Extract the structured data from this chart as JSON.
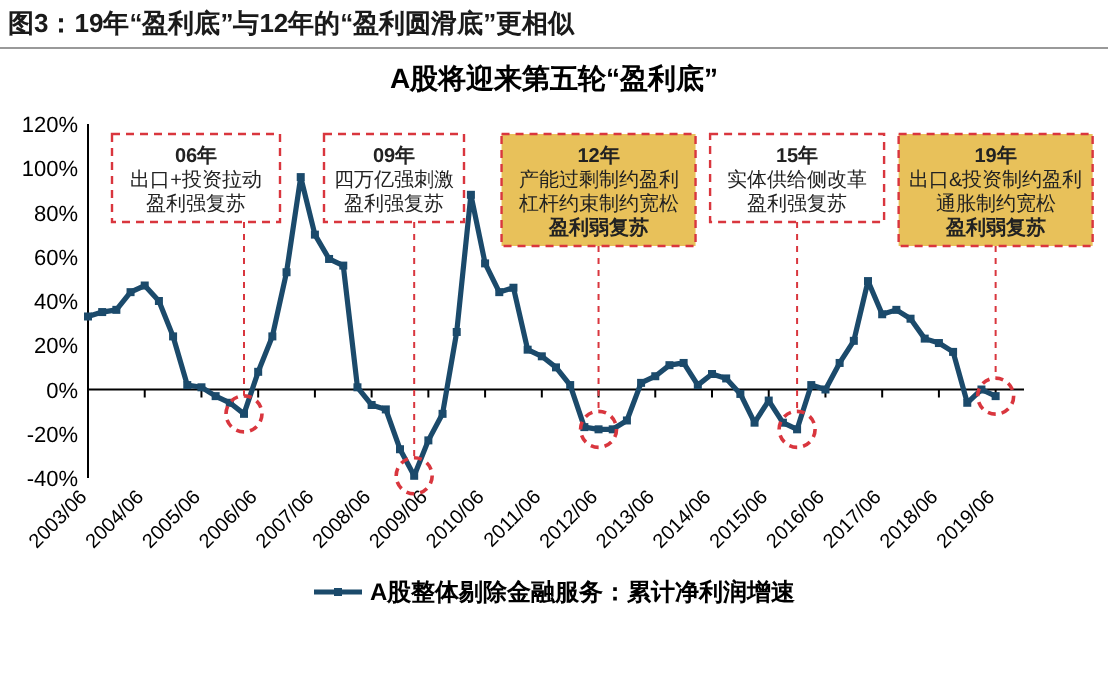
{
  "chart_data": {
    "type": "line",
    "title": "图3：19年“盈利底”与12年的“盈利圆滑底”更相似",
    "subtitle": "A股将迎来第五轮“盈利底”",
    "x": [
      "2003-06",
      "2003-09",
      "2003-12",
      "2004-03",
      "2004-06",
      "2004-09",
      "2004-12",
      "2005-03",
      "2005-06",
      "2005-09",
      "2005-12",
      "2006-03",
      "2006-06",
      "2006-09",
      "2006-12",
      "2007-03",
      "2007-06",
      "2007-09",
      "2007-12",
      "2008-03",
      "2008-06",
      "2008-09",
      "2008-12",
      "2009-03",
      "2009-06",
      "2009-09",
      "2009-12",
      "2010-03",
      "2010-06",
      "2010-09",
      "2010-12",
      "2011-03",
      "2011-06",
      "2011-09",
      "2011-12",
      "2012-03",
      "2012-06",
      "2012-09",
      "2012-12",
      "2013-03",
      "2013-06",
      "2013-09",
      "2013-12",
      "2014-03",
      "2014-06",
      "2014-09",
      "2014-12",
      "2015-03",
      "2015-06",
      "2015-09",
      "2015-12",
      "2016-03",
      "2016-06",
      "2016-09",
      "2016-12",
      "2017-03",
      "2017-06",
      "2017-09",
      "2017-12",
      "2018-03",
      "2018-06",
      "2018-09",
      "2018-12",
      "2019-03",
      "2019-06"
    ],
    "series": [
      {
        "name": "A股整体剔除金融服务：累计净利润增速",
        "color": "#1b4a6b",
        "values": [
          33,
          35,
          36,
          44,
          47,
          40,
          24,
          2,
          1,
          -3,
          -6,
          -11,
          8,
          24,
          53,
          96,
          70,
          59,
          56,
          1,
          -7,
          -9,
          -27,
          -39,
          -23,
          -11,
          26,
          88,
          57,
          44,
          46,
          18,
          15,
          10,
          2,
          -17,
          -18,
          -18,
          -14,
          3,
          6,
          11,
          12,
          2,
          7,
          5,
          -2,
          -15,
          -5,
          -15,
          -18,
          2,
          0,
          12,
          22,
          49,
          34,
          36,
          32,
          23,
          21,
          17,
          -6,
          0,
          -3
        ]
      }
    ],
    "xlim": [
      "2003-06",
      "2019-12"
    ],
    "xticks": [
      {
        "value": "2003-06",
        "label": "2003/06"
      },
      {
        "value": "2004-06",
        "label": "2004/06"
      },
      {
        "value": "2005-06",
        "label": "2005/06"
      },
      {
        "value": "2006-06",
        "label": "2006/06"
      },
      {
        "value": "2007-06",
        "label": "2007/06"
      },
      {
        "value": "2008-06",
        "label": "2008/06"
      },
      {
        "value": "2009-06",
        "label": "2009/06"
      },
      {
        "value": "2010-06",
        "label": "2010/06"
      },
      {
        "value": "2011-06",
        "label": "2011/06"
      },
      {
        "value": "2012-06",
        "label": "2012/06"
      },
      {
        "value": "2013-06",
        "label": "2013/06"
      },
      {
        "value": "2014-06",
        "label": "2014/06"
      },
      {
        "value": "2015-06",
        "label": "2015/06"
      },
      {
        "value": "2016-06",
        "label": "2016/06"
      },
      {
        "value": "2017-06",
        "label": "2017/06"
      },
      {
        "value": "2018-06",
        "label": "2018/06"
      },
      {
        "value": "2019-06",
        "label": "2019/06"
      }
    ],
    "ylim": [
      -40,
      120
    ],
    "yticks": [
      {
        "value": -40,
        "label": "-40%"
      },
      {
        "value": -20,
        "label": "-20%"
      },
      {
        "value": 0,
        "label": "0%"
      },
      {
        "value": 20,
        "label": "20%"
      },
      {
        "value": 40,
        "label": "40%"
      },
      {
        "value": 60,
        "label": "60%"
      },
      {
        "value": 80,
        "label": "80%"
      },
      {
        "value": 100,
        "label": "100%"
      },
      {
        "value": 120,
        "label": "120%"
      }
    ],
    "annotations": [
      "06年",
      "出口+投资拉动",
      {
        "text": "盈利强复苏",
        "x": "2006-03",
        "y": -11
      },
      "09年",
      "四万亿强刺激",
      {
        "text": "盈利强复苏",
        "x": "2009-03",
        "y": -39
      },
      "12年",
      "产能过剩制约盈利",
      "杠杆约束制约宽松",
      {
        "text": "盈利弱复苏",
        "x": "2012-06",
        "y": -18
      },
      "15年",
      "实体供给侧改革",
      {
        "text": "盈利强复苏",
        "x": "2015-12",
        "y": -18
      },
      "19年",
      "出口&投资制约盈利",
      "通胀制约宽松",
      {
        "text": "盈利弱复苏",
        "x": "2019-06",
        "y": -3
      }
    ],
    "marker": "square",
    "line_style": "solid",
    "legend": "bottom"
  }
}
